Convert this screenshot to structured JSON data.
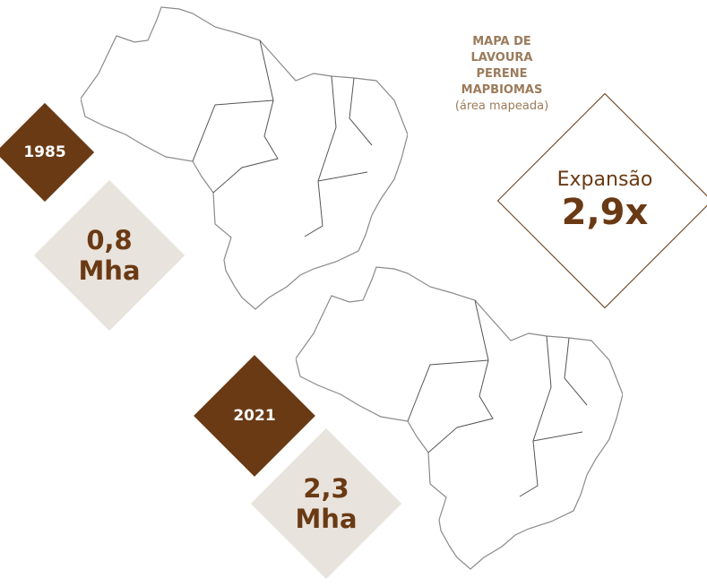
{
  "title": {
    "lines": [
      "MAPA DE",
      "LAVOURA",
      "PERENE",
      "MAPBIOMAS"
    ],
    "subtitle": "(área mapeada)"
  },
  "maps": [
    {
      "year": "1985",
      "area": "0,8",
      "unit": "Mha"
    },
    {
      "year": "2021",
      "area": "2,3",
      "unit": "Mha"
    }
  ],
  "expansion": {
    "label": "Expansão",
    "value": "2,9x"
  },
  "colors": {
    "dark_brown": "#6a3a14",
    "beige": "#e8e3dc",
    "title": "#9c7b5b",
    "map_outline": "#888888"
  },
  "icons": [
    "brazil-map-outline"
  ]
}
